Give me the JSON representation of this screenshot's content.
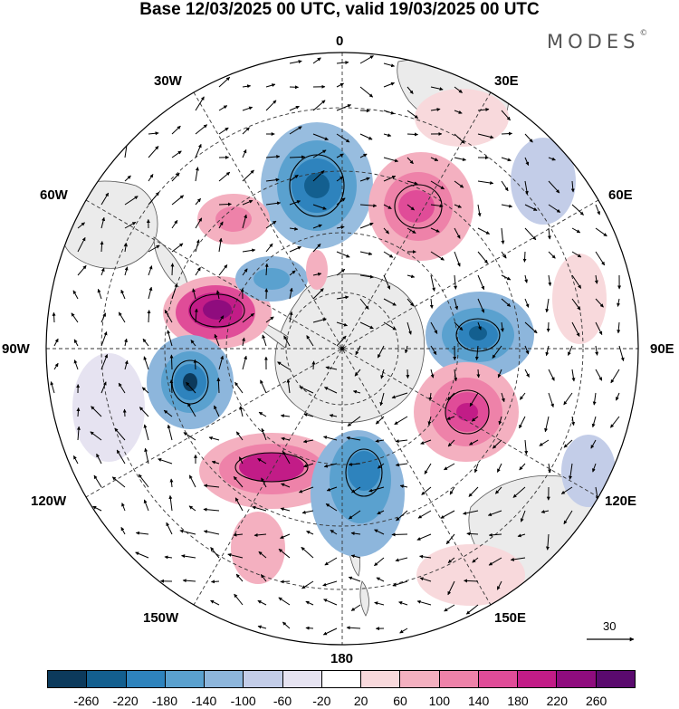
{
  "title": "Base 12/03/2025 00 UTC, valid 19/03/2025 00 UTC",
  "brand": "MODES",
  "brand_mark": "©",
  "longitude_labels": [
    "0",
    "30E",
    "60E",
    "90E",
    "120E",
    "150E",
    "180",
    "150W",
    "120W",
    "90W",
    "60W",
    "30W"
  ],
  "projection": "south polar stereographic",
  "reference_vector": {
    "label": "30"
  },
  "colorbar": {
    "levels": [
      "-260",
      "-220",
      "-180",
      "-140",
      "-100",
      "-60",
      "-20",
      "20",
      "60",
      "100",
      "140",
      "180",
      "220",
      "260"
    ],
    "colors": [
      "#0c3a5c",
      "#135f8f",
      "#2e83bd",
      "#5aa1cf",
      "#8db6dc",
      "#c3cde8",
      "#e6e3f1",
      "#ffffff",
      "#f8d9dc",
      "#f4b0c0",
      "#ee82a9",
      "#e04c98",
      "#c21c87",
      "#8f0c7e",
      "#5a0a6e"
    ]
  },
  "map": {
    "land_color": "#ebebeb",
    "coast_color": "#555555"
  }
}
